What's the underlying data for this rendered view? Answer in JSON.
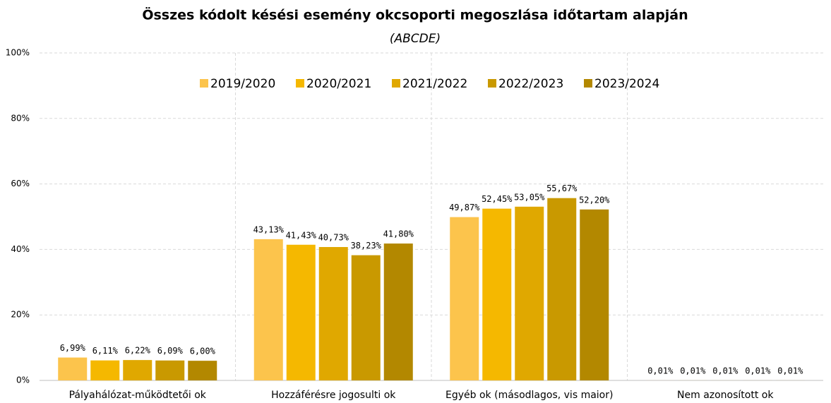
{
  "chart_data": {
    "type": "bar",
    "title": "Összes kódolt késési esemény okcsoporti megoszlása időtartam alapján",
    "subtitle": "(ABCDE)",
    "categories": [
      "Pályahálózat-működtetői ok",
      "Hozzáférésre jogosulti ok",
      "Egyéb ok (másodlagos, vis maior)",
      "Nem azonosított ok"
    ],
    "series": [
      {
        "name": "2019/2020",
        "color": "#fcc44c",
        "values": [
          6.99,
          43.13,
          49.87,
          0.01
        ],
        "value_labels": [
          "6,99%",
          "43,13%",
          "49,87%",
          "0,01%"
        ]
      },
      {
        "name": "2020/2021",
        "color": "#f5b800",
        "values": [
          6.11,
          41.43,
          52.45,
          0.01
        ],
        "value_labels": [
          "6,11%",
          "41,43%",
          "52,45%",
          "0,01%"
        ]
      },
      {
        "name": "2021/2022",
        "color": "#e0a800",
        "values": [
          6.22,
          40.73,
          53.05,
          0.01
        ],
        "value_labels": [
          "6,22%",
          "40,73%",
          "53,05%",
          "0,01%"
        ]
      },
      {
        "name": "2022/2023",
        "color": "#c99900",
        "values": [
          6.09,
          38.23,
          55.67,
          0.01
        ],
        "value_labels": [
          "6,09%",
          "38,23%",
          "55,67%",
          "0,01%"
        ]
      },
      {
        "name": "2023/2024",
        "color": "#b38800",
        "values": [
          6.0,
          41.8,
          52.2,
          0.01
        ],
        "value_labels": [
          "6,00%",
          "41,80%",
          "52,20%",
          "0,01%"
        ]
      }
    ],
    "ylim": [
      0,
      100
    ],
    "yticks": [
      {
        "value": 0,
        "label": "0%"
      },
      {
        "value": 20,
        "label": "20%"
      },
      {
        "value": 40,
        "label": "40%"
      },
      {
        "value": 60,
        "label": "60%"
      },
      {
        "value": 80,
        "label": "80%"
      },
      {
        "value": 100,
        "label": "100%"
      }
    ],
    "grid": true,
    "legend": "top"
  }
}
